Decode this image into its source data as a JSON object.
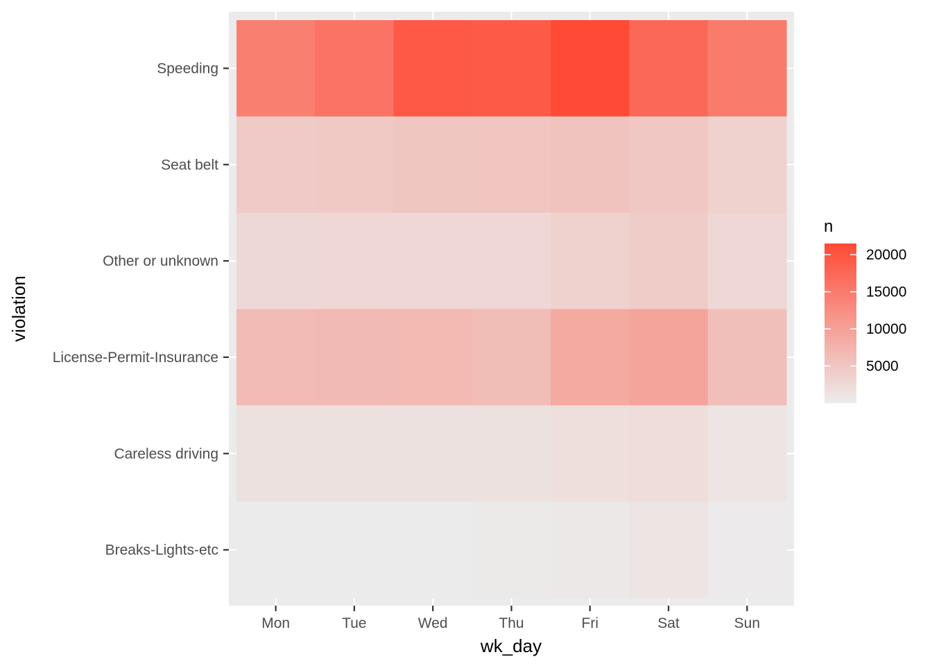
{
  "chart_data": {
    "type": "heatmap",
    "title": "",
    "xlabel": "wk_day",
    "ylabel": "violation",
    "x_categories": [
      "Mon",
      "Tue",
      "Wed",
      "Thu",
      "Fri",
      "Sat",
      "Sun"
    ],
    "y_categories": [
      "Speeding",
      "Seat belt",
      "Other or unknown",
      "License-Permit-Insurance",
      "Careless driving",
      "Breaks-Lights-etc"
    ],
    "values": [
      [
        14500,
        16000,
        19500,
        19300,
        21500,
        17500,
        15000
      ],
      [
        4500,
        4600,
        5000,
        5100,
        5400,
        4900,
        3600
      ],
      [
        2700,
        2800,
        2800,
        2800,
        3600,
        4200,
        2800
      ],
      [
        6500,
        6600,
        6700,
        6200,
        8800,
        9500,
        6000
      ],
      [
        1500,
        1400,
        1500,
        1400,
        1900,
        2000,
        1100
      ],
      [
        100,
        150,
        100,
        400,
        500,
        900,
        200
      ]
    ],
    "legend": {
      "title": "n",
      "breaks": [
        5000,
        10000,
        15000,
        20000
      ],
      "range": [
        0,
        21500
      ],
      "low_color": "#ececec",
      "high_color": "#ff4a35",
      "position": "right"
    },
    "panel_background": "#ebebeb",
    "grid": true
  }
}
